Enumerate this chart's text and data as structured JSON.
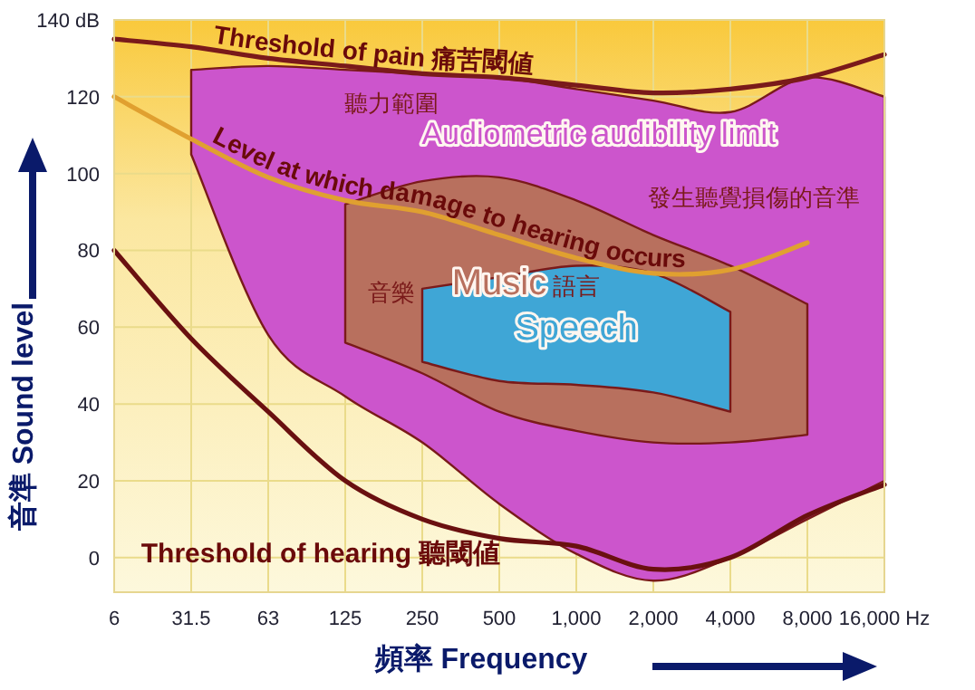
{
  "chart_data": {
    "type": "line",
    "categories": [
      "6",
      "31.5",
      "63",
      "125",
      "250",
      "500",
      "1,000",
      "2,000",
      "4,000",
      "8,000",
      "16,000 Hz"
    ],
    "xlabel": "頻率 Frequency",
    "ylabel": "音準 Sound level",
    "ylim": [
      -9,
      140
    ],
    "yticks": [
      0,
      20,
      40,
      60,
      80,
      100,
      {
        "value": 140,
        "label": "140 dB"
      },
      120
    ],
    "grid": true,
    "legend": false,
    "series": [
      {
        "type": "area",
        "name": "Audiometric audibility limit",
        "color": "#cc55cc",
        "values": [
          null,
          null,
          null,
          null,
          null,
          null,
          null,
          null,
          null,
          null,
          null
        ],
        "upper": [
          null,
          127,
          128,
          127,
          126,
          125,
          122,
          119,
          116,
          125,
          120
        ],
        "lower": [
          null,
          105,
          58,
          42,
          30,
          14,
          1,
          -6,
          0,
          10,
          20
        ]
      },
      {
        "type": "area",
        "name": "Music",
        "color": "#b8705e",
        "values": [
          null,
          null,
          null,
          null,
          null,
          null,
          null,
          null,
          null,
          null,
          null
        ],
        "upper": [
          null,
          null,
          null,
          92,
          98,
          99,
          93,
          84,
          76,
          66,
          null
        ],
        "lower": [
          null,
          null,
          null,
          56,
          48,
          38,
          33,
          30,
          30,
          32,
          null
        ]
      },
      {
        "type": "area",
        "name": "Speech",
        "color": "#3fa6d6",
        "values": [
          null,
          null,
          null,
          null,
          null,
          null,
          null,
          null,
          null,
          null,
          null
        ],
        "upper": [
          null,
          null,
          null,
          null,
          70,
          73,
          76,
          74,
          64,
          null,
          null
        ],
        "lower": [
          null,
          null,
          null,
          null,
          51,
          46,
          45,
          43,
          38,
          null,
          null
        ]
      },
      {
        "type": "line",
        "name": "Threshold of pain 痛苦閾値",
        "color": "#7a1a1a",
        "values": [
          135,
          133,
          130,
          128,
          126,
          125,
          123,
          121,
          122,
          125,
          131
        ]
      },
      {
        "type": "line",
        "name": "Level at which damage to hearing occurs",
        "color": "#e0a030",
        "values": [
          120,
          109,
          99,
          93,
          90,
          84,
          78,
          74,
          75,
          82,
          null
        ]
      },
      {
        "type": "line",
        "name": "Threshold of hearing 聽閾値",
        "color": "#6a1010",
        "values": [
          80,
          57,
          38,
          20,
          10,
          5,
          3,
          -3,
          0,
          11,
          19
        ]
      }
    ],
    "annotations": [
      "聽力範圍",
      "發生聽覺損傷的音準",
      "音樂",
      "語言"
    ]
  }
}
